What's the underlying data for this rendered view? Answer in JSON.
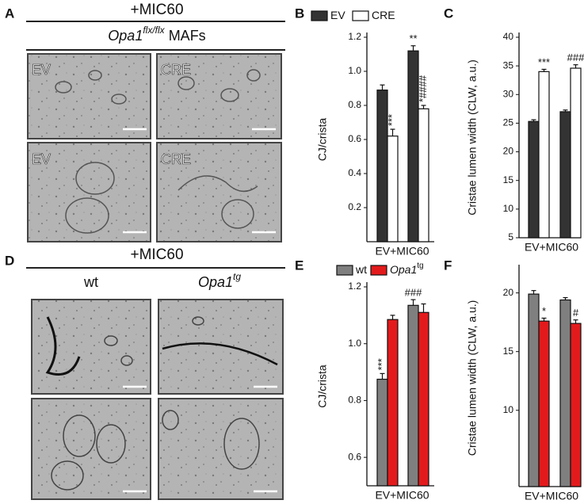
{
  "panel_a": {
    "letter": "A",
    "title": "+MIC60",
    "subtitle_gene": "Opa1",
    "subtitle_sup": "flx/flx",
    "subtitle_rest": "MAFs",
    "image_labels": [
      "EV",
      "CRE",
      "EV",
      "CRE"
    ]
  },
  "panel_d": {
    "letter": "D",
    "title": "+MIC60",
    "column_1": "wt",
    "column_2_gene": "Opa1",
    "column_2_sup": "tg"
  },
  "chart_data": [
    {
      "letter": "B",
      "type": "bar",
      "y_label": "CJ/crista",
      "x_label": "EV+MIC60",
      "categories": [
        null,
        null
      ],
      "legend": true,
      "ylim": [
        0,
        1.2
      ],
      "yticks": [
        0.2,
        0.4,
        0.6,
        0.8,
        {
          "value": 1,
          "label": "1.0"
        },
        1.2
      ],
      "series": [
        {
          "name": "EV",
          "color": "#333333",
          "values": [
            0.89,
            1.12
          ],
          "errors": [
            0.03,
            0.03
          ],
          "annotations": [
            null,
            {
              "text": "**",
              "vertical": false
            }
          ]
        },
        {
          "name": "CRE",
          "color": "#ffffff",
          "values": [
            0.62,
            0.78
          ],
          "errors": [
            0.04,
            0.02
          ],
          "annotations": [
            {
              "text": "***",
              "vertical": true
            },
            {
              "text": "*####",
              "vertical": true
            }
          ]
        }
      ]
    },
    {
      "letter": "C",
      "type": "bar",
      "y_label": "Cristae lumen width (CLW, a.u.)",
      "x_label": "EV+MIC60",
      "categories": [
        null,
        null
      ],
      "legend": false,
      "ylim": [
        5,
        40
      ],
      "yticks": [
        5,
        10,
        15,
        20,
        25,
        30,
        35,
        40
      ],
      "series": [
        {
          "name": "EV",
          "color": "#333333",
          "values": [
            25.3,
            27
          ],
          "errors": [
            0.3,
            0.3
          ],
          "annotations": [
            null,
            null
          ]
        },
        {
          "name": "CRE",
          "color": "#ffffff",
          "values": [
            34,
            34.6
          ],
          "errors": [
            0.4,
            0.6
          ],
          "annotations": [
            {
              "text": "***",
              "vertical": false
            },
            {
              "text": "###",
              "vertical": false
            }
          ]
        }
      ]
    },
    {
      "letter": "E",
      "type": "bar",
      "y_label": "CJ/crista",
      "x_label": "EV+MIC60",
      "categories": [
        null,
        null
      ],
      "legend": true,
      "ylim": [
        0.5,
        1.2
      ],
      "yticks": [
        0.6,
        0.8,
        {
          "value": 1,
          "label": "1.0"
        },
        1.2
      ],
      "series": [
        {
          "name": "wt",
          "color": "#7f7f7f",
          "values": [
            0.875,
            1.135
          ],
          "errors": [
            0.02,
            0.02
          ],
          "annotations": [
            {
              "text": "***",
              "vertical": true
            },
            {
              "text": "###",
              "vertical": false
            }
          ]
        },
        {
          "name": "Opa1",
          "name_sup": "tg",
          "color": "#e31a1c",
          "values": [
            1.085,
            1.11
          ],
          "errors": [
            0.015,
            0.03
          ],
          "annotations": [
            null,
            null
          ]
        }
      ]
    },
    {
      "letter": "F",
      "type": "bar",
      "y_label": "Cristae lumen width (CLW, a.u.)",
      "x_label": "EV+MIC60",
      "categories": [
        null,
        null
      ],
      "legend": false,
      "ylim": [
        3.5,
        22
      ],
      "yticks": [
        10,
        15,
        20
      ],
      "series": [
        {
          "name": "wt",
          "color": "#7f7f7f",
          "values": [
            19.9,
            19.4
          ],
          "errors": [
            0.3,
            0.2
          ],
          "annotations": [
            null,
            null
          ]
        },
        {
          "name": "Opa1",
          "name_sup": "tg",
          "color": "#e31a1c",
          "values": [
            17.6,
            17.4
          ],
          "errors": [
            0.25,
            0.3
          ],
          "annotations": [
            {
              "text": "*",
              "vertical": false
            },
            {
              "text": "#",
              "vertical": false
            }
          ]
        }
      ]
    }
  ]
}
